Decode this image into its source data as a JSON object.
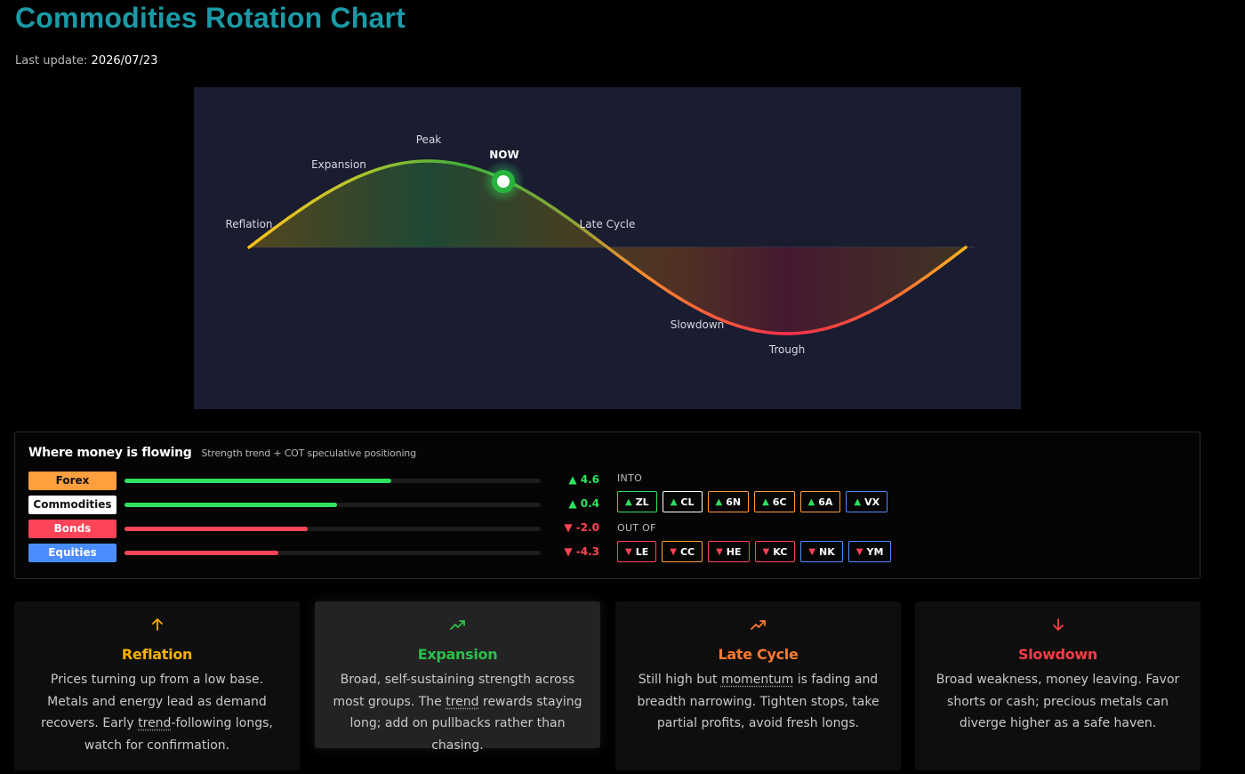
{
  "header": {
    "title": "Commodities Rotation Chart",
    "last_update_label": "Last update:",
    "last_update_value": "2026/07/23"
  },
  "cycle": {
    "phases": [
      "Reflation",
      "Expansion",
      "Peak",
      "Late Cycle",
      "Slowdown",
      "Trough"
    ],
    "now_label": "NOW",
    "current_phase": "Expansion"
  },
  "flow": {
    "title": "Where money is flowing",
    "subtitle": "Strength trend + COT speculative positioning",
    "rows": [
      {
        "name": "Forex",
        "value_text": "▲ 4.6",
        "value": 4.6,
        "fill_fraction": 0.64,
        "label_bg": "#ff9f3d",
        "direction": "up"
      },
      {
        "name": "Commodities",
        "value_text": "▲ 0.4",
        "value": 0.4,
        "fill_fraction": 0.51,
        "label_bg": "#ffffff",
        "direction": "up"
      },
      {
        "name": "Bonds",
        "value_text": "▼ -2.0",
        "value": -2.0,
        "fill_fraction": 0.44,
        "label_bg": "#ff4458",
        "direction": "down"
      },
      {
        "name": "Equities",
        "value_text": "▼ -4.3",
        "value": -4.3,
        "fill_fraction": 0.37,
        "label_bg": "#4a8dff",
        "direction": "down"
      }
    ],
    "into_label": "INTO",
    "out_label": "OUT OF",
    "into": [
      {
        "arrow": "▲",
        "code": "ZL",
        "border": "#2fe25f"
      },
      {
        "arrow": "▲",
        "code": "CL",
        "border": "#ffffff"
      },
      {
        "arrow": "▲",
        "code": "6N",
        "border": "#ff9f3d"
      },
      {
        "arrow": "▲",
        "code": "6C",
        "border": "#ff9f3d"
      },
      {
        "arrow": "▲",
        "code": "6A",
        "border": "#ff9f3d"
      },
      {
        "arrow": "▲",
        "code": "VX",
        "border": "#4a8dff"
      }
    ],
    "out": [
      {
        "arrow": "▼",
        "code": "LE",
        "border": "#ff4455"
      },
      {
        "arrow": "▼",
        "code": "CC",
        "border": "#ff9f3d"
      },
      {
        "arrow": "▼",
        "code": "HE",
        "border": "#ff4455"
      },
      {
        "arrow": "▼",
        "code": "KC",
        "border": "#ff4455"
      },
      {
        "arrow": "▼",
        "code": "NK",
        "border": "#4a8dff"
      },
      {
        "arrow": "▼",
        "code": "YM",
        "border": "#4a8dff"
      }
    ]
  },
  "cards": [
    {
      "title": "Reflation",
      "icon": "arrow-up-icon",
      "color": "#f5b000",
      "text_a": "Prices turning up from a low base. Metals and energy lead as demand recovers. Early ",
      "link": "trend",
      "text_b": "-following longs, watch for confirmation."
    },
    {
      "title": "Expansion",
      "icon": "trending-up-icon",
      "color": "#2bbf4b",
      "text_a": "Broad, self-sustaining strength across most groups. The ",
      "link": "trend",
      "text_b": " rewards staying long; add on pullbacks rather than chasing."
    },
    {
      "title": "Late Cycle",
      "icon": "trending-peak-icon",
      "color": "#ff7a2f",
      "text_a": "Still high but ",
      "link": "momentum",
      "text_b": " is fading and breadth narrowing. Tighten stops, take partial profits, avoid fresh longs."
    },
    {
      "title": "Slowdown",
      "icon": "arrow-down-icon",
      "color": "#ff3b45",
      "text_a": "Broad weakness, money leaving. Favor shorts or cash; precious metals can diverge higher as a safe haven.",
      "link": "",
      "text_b": ""
    }
  ]
}
